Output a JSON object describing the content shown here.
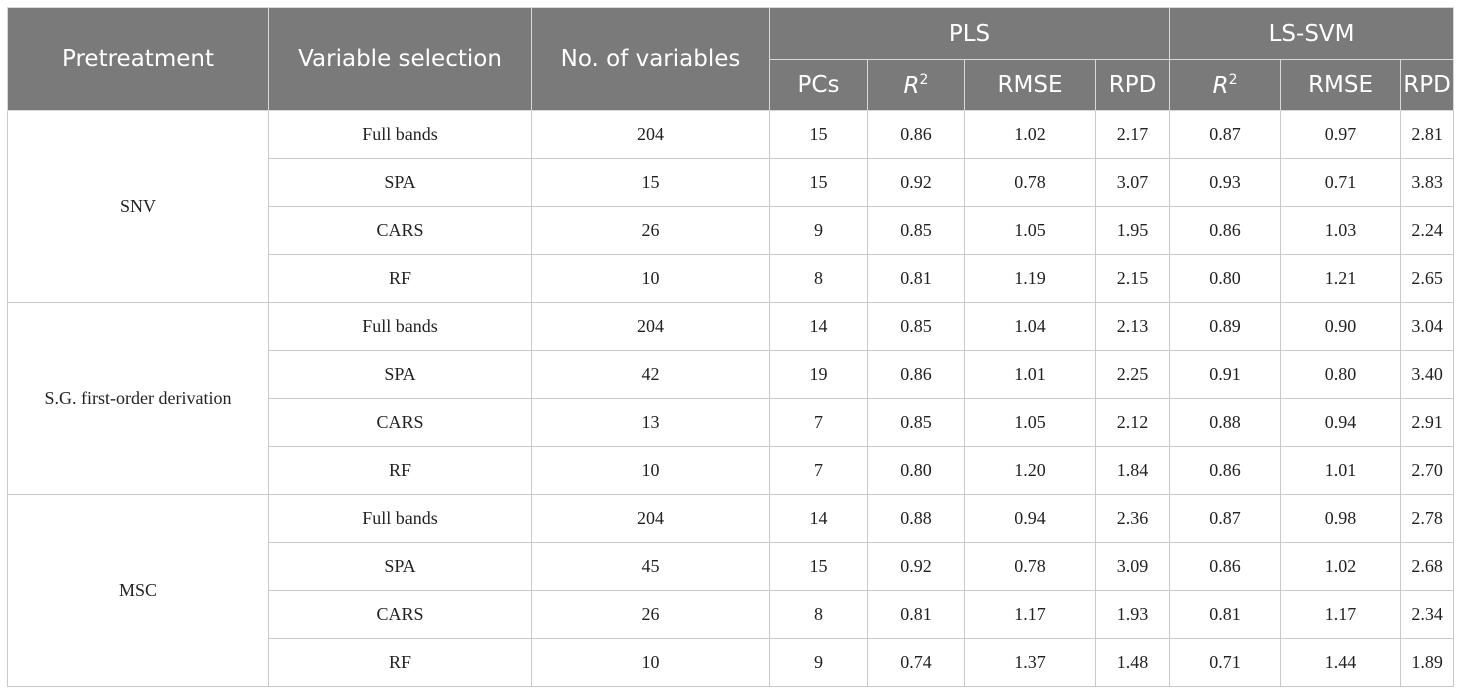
{
  "header": {
    "pretreatment": "Pretreatment",
    "variable_selection": "Variable selection",
    "num_variables": "No. of variables",
    "pls": "PLS",
    "lssvm": "LS-SVM",
    "pcs": "PCs",
    "r2_base": "R",
    "r2_sup": "2",
    "rmse": "RMSE",
    "rpd": "RPD"
  },
  "groups": [
    {
      "pretreatment": "SNV",
      "rows": [
        {
          "selection": "Full bands",
          "n": "204",
          "pcs": "15",
          "pls_r2": "0.86",
          "pls_rmse": "1.02",
          "pls_rpd": "2.17",
          "svm_r2": "0.87",
          "svm_rmse": "0.97",
          "svm_rpd": "2.81"
        },
        {
          "selection": "SPA",
          "n": "15",
          "pcs": "15",
          "pls_r2": "0.92",
          "pls_rmse": "0.78",
          "pls_rpd": "3.07",
          "svm_r2": "0.93",
          "svm_rmse": "0.71",
          "svm_rpd": "3.83"
        },
        {
          "selection": "CARS",
          "n": "26",
          "pcs": "9",
          "pls_r2": "0.85",
          "pls_rmse": "1.05",
          "pls_rpd": "1.95",
          "svm_r2": "0.86",
          "svm_rmse": "1.03",
          "svm_rpd": "2.24"
        },
        {
          "selection": "RF",
          "n": "10",
          "pcs": "8",
          "pls_r2": "0.81",
          "pls_rmse": "1.19",
          "pls_rpd": "2.15",
          "svm_r2": "0.80",
          "svm_rmse": "1.21",
          "svm_rpd": "2.65"
        }
      ]
    },
    {
      "pretreatment": "S.G. first-order derivation",
      "rows": [
        {
          "selection": "Full bands",
          "n": "204",
          "pcs": "14",
          "pls_r2": "0.85",
          "pls_rmse": "1.04",
          "pls_rpd": "2.13",
          "svm_r2": "0.89",
          "svm_rmse": "0.90",
          "svm_rpd": "3.04"
        },
        {
          "selection": "SPA",
          "n": "42",
          "pcs": "19",
          "pls_r2": "0.86",
          "pls_rmse": "1.01",
          "pls_rpd": "2.25",
          "svm_r2": "0.91",
          "svm_rmse": "0.80",
          "svm_rpd": "3.40"
        },
        {
          "selection": "CARS",
          "n": "13",
          "pcs": "7",
          "pls_r2": "0.85",
          "pls_rmse": "1.05",
          "pls_rpd": "2.12",
          "svm_r2": "0.88",
          "svm_rmse": "0.94",
          "svm_rpd": "2.91"
        },
        {
          "selection": "RF",
          "n": "10",
          "pcs": "7",
          "pls_r2": "0.80",
          "pls_rmse": "1.20",
          "pls_rpd": "1.84",
          "svm_r2": "0.86",
          "svm_rmse": "1.01",
          "svm_rpd": "2.70"
        }
      ]
    },
    {
      "pretreatment": "MSC",
      "rows": [
        {
          "selection": "Full bands",
          "n": "204",
          "pcs": "14",
          "pls_r2": "0.88",
          "pls_rmse": "0.94",
          "pls_rpd": "2.36",
          "svm_r2": "0.87",
          "svm_rmse": "0.98",
          "svm_rpd": "2.78"
        },
        {
          "selection": "SPA",
          "n": "45",
          "pcs": "15",
          "pls_r2": "0.92",
          "pls_rmse": "0.78",
          "pls_rpd": "3.09",
          "svm_r2": "0.86",
          "svm_rmse": "1.02",
          "svm_rpd": "2.68"
        },
        {
          "selection": "CARS",
          "n": "26",
          "pcs": "8",
          "pls_r2": "0.81",
          "pls_rmse": "1.17",
          "pls_rpd": "1.93",
          "svm_r2": "0.81",
          "svm_rmse": "1.17",
          "svm_rpd": "2.34"
        },
        {
          "selection": "RF",
          "n": "10",
          "pcs": "9",
          "pls_r2": "0.74",
          "pls_rmse": "1.37",
          "pls_rpd": "1.48",
          "svm_r2": "0.71",
          "svm_rmse": "1.44",
          "svm_rpd": "1.89"
        }
      ]
    }
  ]
}
